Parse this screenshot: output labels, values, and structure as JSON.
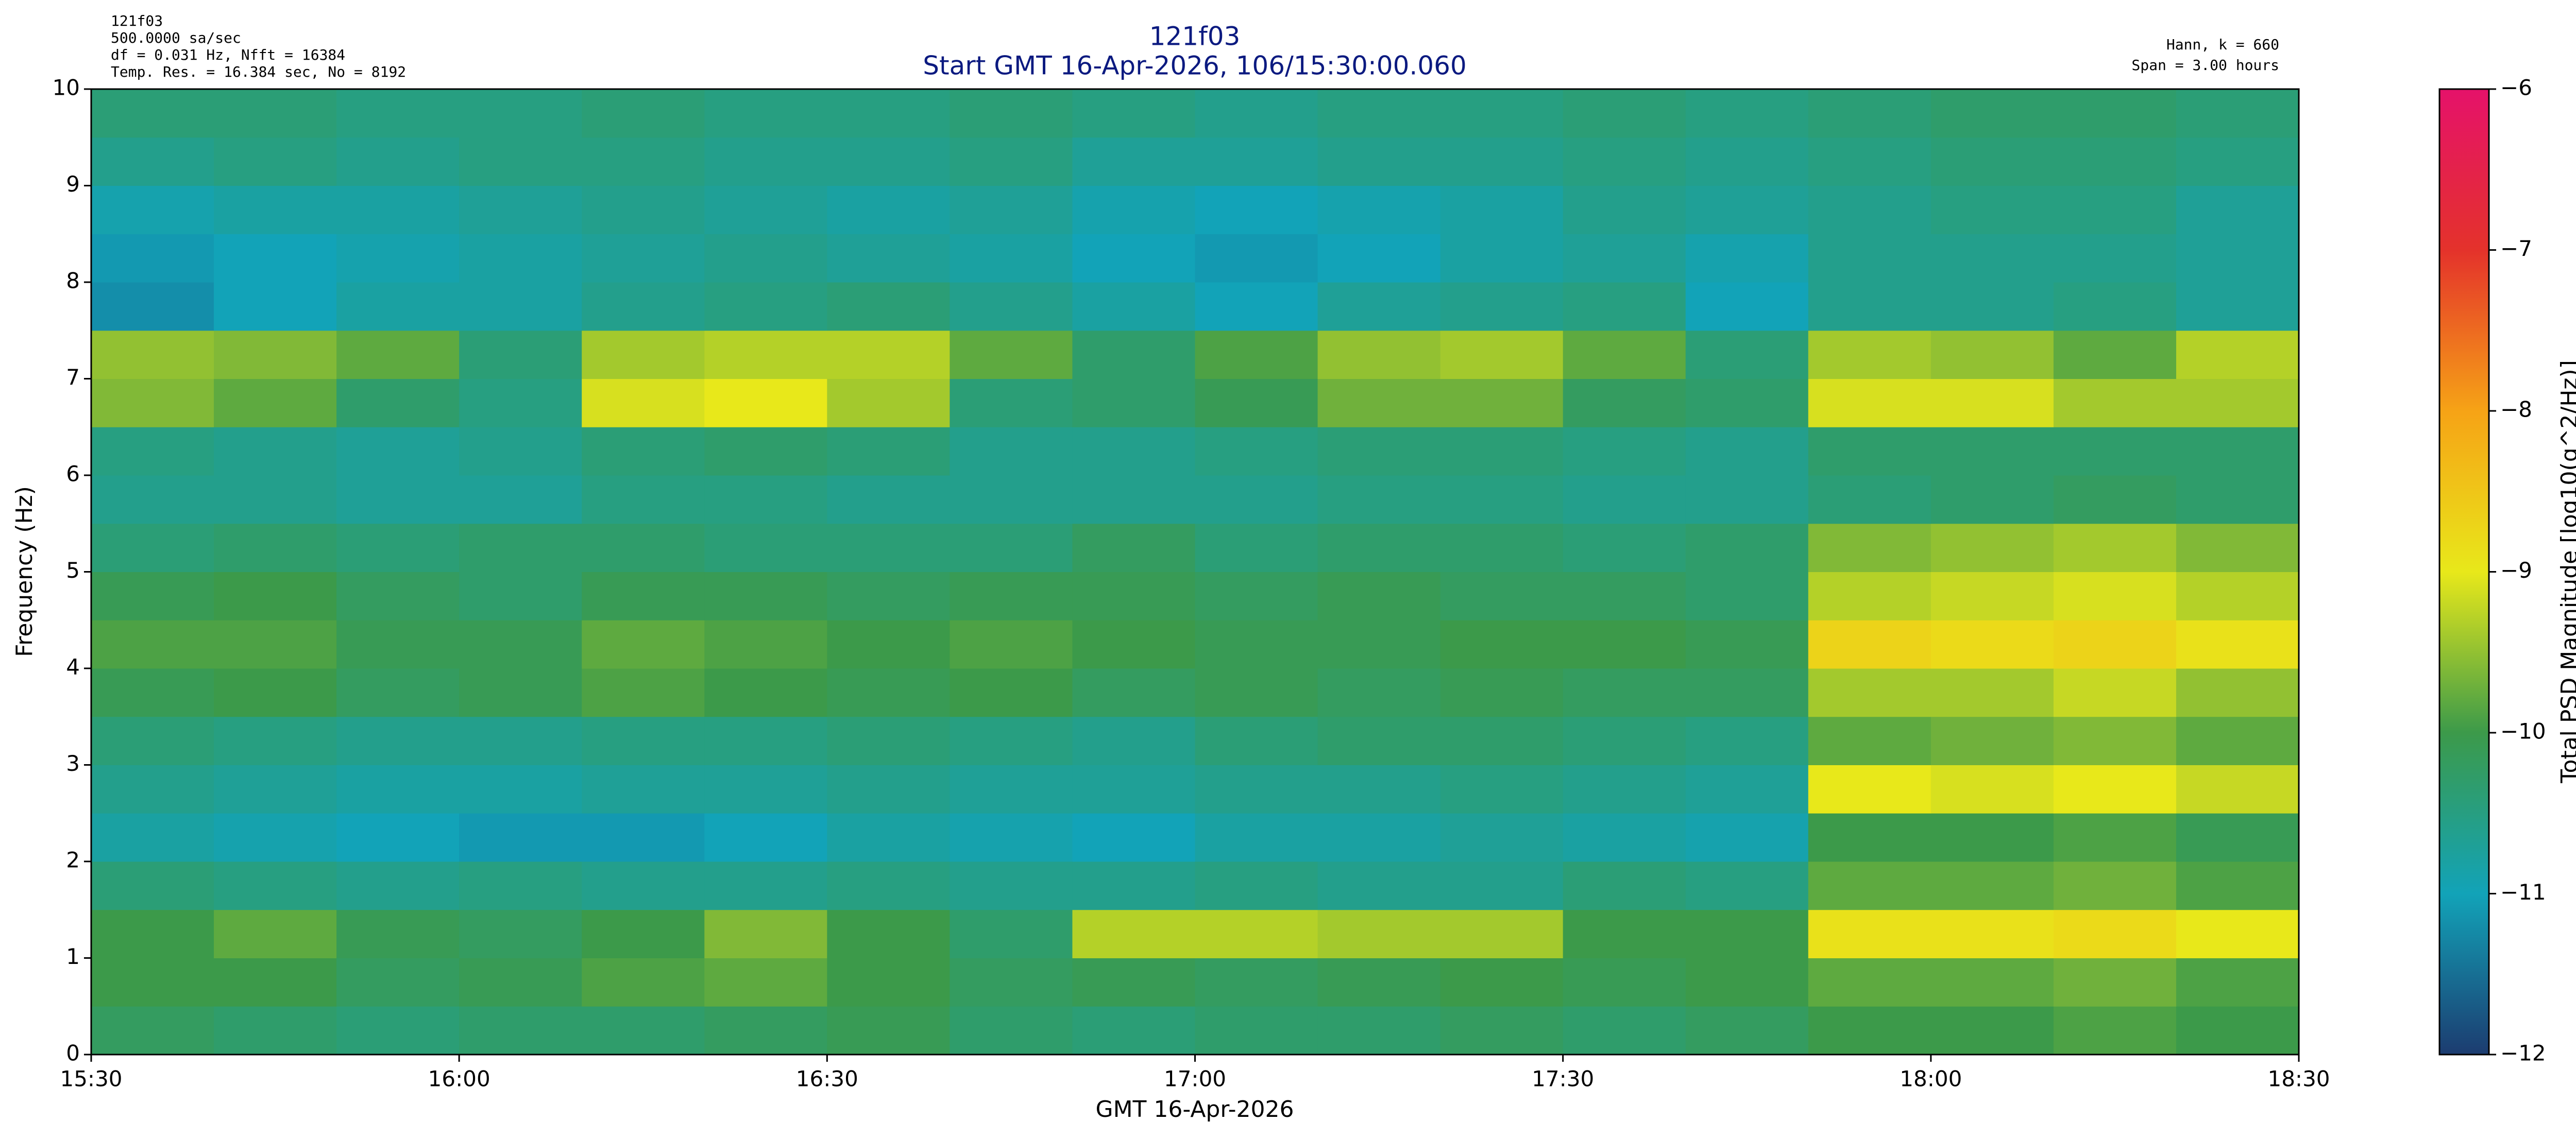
{
  "chart_data": {
    "type": "heatmap",
    "title": "121f03",
    "subtitle": "Start GMT 16-Apr-2026, 106/15:30:00.060",
    "info_left": [
      "121f03",
      "500.0000 sa/sec",
      "df = 0.031 Hz,  Nfft = 16384",
      "Temp. Res. = 16.384 sec, No = 8192"
    ],
    "info_right": [
      "Hann, k = 660",
      "Span = 3.00 hours"
    ],
    "xlabel": "GMT 16-Apr-2026",
    "ylabel": "Frequency (Hz)",
    "colorbar_label": "Total PSD Magnitude [log10(g^2/Hz)]",
    "xlim": [
      "15:30",
      "18:30"
    ],
    "xticks": [
      "15:30",
      "16:00",
      "16:30",
      "17:00",
      "17:30",
      "18:00",
      "18:30"
    ],
    "ylim": [
      0,
      10
    ],
    "yticks": [
      0,
      1,
      2,
      3,
      4,
      5,
      6,
      7,
      8,
      9,
      10
    ],
    "zlim": [
      -12,
      -6
    ],
    "zticks": [
      {
        "value": -12,
        "label": "−12"
      },
      {
        "value": -11,
        "label": "−11"
      },
      {
        "value": -10,
        "label": "−10"
      },
      {
        "value": -9,
        "label": "−9"
      },
      {
        "value": -8,
        "label": "−8"
      },
      {
        "value": -7,
        "label": "−7"
      },
      {
        "value": -6,
        "label": "−6"
      }
    ],
    "colormap": [
      "#1c3c70",
      "#12a3b8",
      "#3c9a4a",
      "#e8e81a",
      "#f6a316",
      "#e4322b",
      "#e5126a"
    ],
    "x": [
      "15:30",
      "15:40",
      "15:50",
      "16:00",
      "16:10",
      "16:20",
      "16:30",
      "16:40",
      "16:50",
      "17:00",
      "17:10",
      "17:20",
      "17:30",
      "17:40",
      "17:50",
      "18:00",
      "18:10",
      "18:20"
    ],
    "y": [
      0,
      0.5,
      1,
      1.5,
      2,
      2.5,
      3,
      3.5,
      4,
      4.5,
      5,
      5.5,
      6,
      6.5,
      7,
      7.5,
      8,
      8.5,
      9,
      9.5
    ],
    "z": [
      [
        -10.2,
        -10.3,
        -10.4,
        -10.3,
        -10.3,
        -10.2,
        -10.1,
        -10.3,
        -10.4,
        -10.3,
        -10.3,
        -10.2,
        -10.3,
        -10.2,
        -10.0,
        -10.0,
        -9.9,
        -10.0
      ],
      [
        -10.0,
        -10.0,
        -10.2,
        -10.1,
        -9.9,
        -9.8,
        -10.0,
        -10.2,
        -10.1,
        -10.2,
        -10.1,
        -10.0,
        -10.1,
        -10.0,
        -9.8,
        -9.8,
        -9.7,
        -9.9
      ],
      [
        -10.0,
        -9.8,
        -10.1,
        -10.2,
        -10.0,
        -9.6,
        -10.0,
        -10.3,
        -9.3,
        -9.3,
        -9.4,
        -9.4,
        -10.0,
        -10.0,
        -8.9,
        -8.9,
        -8.8,
        -9.0
      ],
      [
        -10.4,
        -10.5,
        -10.6,
        -10.5,
        -10.6,
        -10.6,
        -10.5,
        -10.6,
        -10.6,
        -10.5,
        -10.6,
        -10.6,
        -10.4,
        -10.5,
        -9.8,
        -9.8,
        -9.7,
        -9.9
      ],
      [
        -10.8,
        -10.9,
        -11.0,
        -11.1,
        -11.1,
        -11.0,
        -10.8,
        -10.9,
        -11.0,
        -10.8,
        -10.8,
        -10.7,
        -10.8,
        -10.9,
        -10.0,
        -10.0,
        -9.9,
        -10.1
      ],
      [
        -10.6,
        -10.7,
        -10.8,
        -10.8,
        -10.7,
        -10.7,
        -10.6,
        -10.7,
        -10.7,
        -10.6,
        -10.6,
        -10.5,
        -10.6,
        -10.7,
        -9.0,
        -9.1,
        -9.0,
        -9.2
      ],
      [
        -10.4,
        -10.5,
        -10.6,
        -10.6,
        -10.5,
        -10.5,
        -10.4,
        -10.5,
        -10.6,
        -10.4,
        -10.3,
        -10.3,
        -10.4,
        -10.5,
        -9.8,
        -9.7,
        -9.6,
        -9.8
      ],
      [
        -10.1,
        -10.0,
        -10.2,
        -10.1,
        -9.9,
        -10.0,
        -10.1,
        -10.0,
        -10.2,
        -10.1,
        -10.2,
        -10.1,
        -10.2,
        -10.2,
        -9.4,
        -9.4,
        -9.2,
        -9.5
      ],
      [
        -9.9,
        -9.9,
        -10.1,
        -10.1,
        -9.8,
        -9.9,
        -10.0,
        -9.9,
        -10.0,
        -10.1,
        -10.1,
        -10.0,
        -10.0,
        -10.1,
        -8.7,
        -8.8,
        -8.7,
        -8.9
      ],
      [
        -10.1,
        -10.0,
        -10.2,
        -10.3,
        -10.1,
        -10.1,
        -10.2,
        -10.1,
        -10.1,
        -10.2,
        -10.1,
        -10.2,
        -10.2,
        -10.3,
        -9.3,
        -9.2,
        -9.1,
        -9.3
      ],
      [
        -10.4,
        -10.3,
        -10.4,
        -10.3,
        -10.3,
        -10.4,
        -10.4,
        -10.4,
        -10.2,
        -10.4,
        -10.3,
        -10.3,
        -10.4,
        -10.3,
        -9.6,
        -9.5,
        -9.4,
        -9.6
      ],
      [
        -10.6,
        -10.6,
        -10.7,
        -10.7,
        -10.5,
        -10.5,
        -10.6,
        -10.6,
        -10.6,
        -10.6,
        -10.5,
        -10.5,
        -10.6,
        -10.6,
        -10.4,
        -10.3,
        -10.2,
        -10.3
      ],
      [
        -10.5,
        -10.6,
        -10.7,
        -10.6,
        -10.4,
        -10.3,
        -10.4,
        -10.6,
        -10.6,
        -10.5,
        -10.4,
        -10.4,
        -10.5,
        -10.6,
        -10.3,
        -10.3,
        -10.3,
        -10.3
      ],
      [
        -9.6,
        -9.8,
        -10.3,
        -10.5,
        -9.1,
        -9.0,
        -9.4,
        -10.4,
        -10.3,
        -10.1,
        -9.7,
        -9.7,
        -10.2,
        -10.3,
        -9.1,
        -9.1,
        -9.4,
        -9.4
      ],
      [
        -9.5,
        -9.6,
        -9.8,
        -10.4,
        -9.4,
        -9.3,
        -9.3,
        -9.8,
        -10.3,
        -9.9,
        -9.5,
        -9.4,
        -9.8,
        -10.4,
        -9.4,
        -9.5,
        -9.8,
        -9.3
      ],
      [
        -11.2,
        -11.0,
        -10.8,
        -10.8,
        -10.6,
        -10.5,
        -10.4,
        -10.6,
        -10.8,
        -11.0,
        -10.7,
        -10.6,
        -10.5,
        -11.0,
        -10.6,
        -10.6,
        -10.5,
        -10.7
      ],
      [
        -11.1,
        -11.0,
        -10.9,
        -10.8,
        -10.7,
        -10.6,
        -10.7,
        -10.8,
        -11.0,
        -11.1,
        -11.0,
        -10.8,
        -10.7,
        -10.9,
        -10.6,
        -10.6,
        -10.6,
        -10.7
      ],
      [
        -10.9,
        -10.8,
        -10.8,
        -10.7,
        -10.6,
        -10.7,
        -10.8,
        -10.7,
        -10.9,
        -11.0,
        -10.9,
        -10.8,
        -10.6,
        -10.7,
        -10.6,
        -10.5,
        -10.5,
        -10.7
      ],
      [
        -10.6,
        -10.5,
        -10.6,
        -10.5,
        -10.5,
        -10.6,
        -10.6,
        -10.5,
        -10.7,
        -10.7,
        -10.6,
        -10.6,
        -10.5,
        -10.6,
        -10.5,
        -10.4,
        -10.4,
        -10.5
      ],
      [
        -10.4,
        -10.4,
        -10.5,
        -10.5,
        -10.4,
        -10.5,
        -10.5,
        -10.4,
        -10.5,
        -10.6,
        -10.5,
        -10.5,
        -10.4,
        -10.5,
        -10.4,
        -10.3,
        -10.3,
        -10.4
      ]
    ]
  }
}
